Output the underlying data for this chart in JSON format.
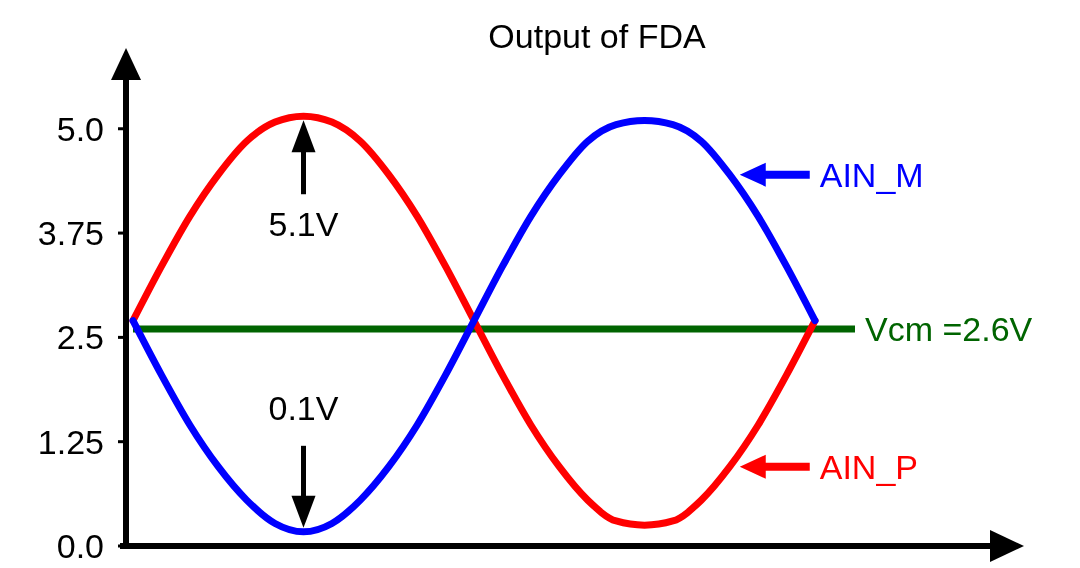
{
  "chart_data": {
    "type": "line",
    "title": "Output of FDA",
    "categories": [
      null,
      null,
      null,
      null,
      null,
      null,
      null,
      null,
      null,
      null,
      null,
      null,
      null,
      null,
      null,
      null,
      null,
      null,
      null,
      null,
      null,
      null,
      null,
      null,
      null
    ],
    "series": [
      {
        "name": "AIN_P",
        "color": "#ff0000",
        "values": [
          2.7,
          3.35,
          3.95,
          4.45,
          4.85,
          5.08,
          5.15,
          5.08,
          4.85,
          4.45,
          3.95,
          3.35,
          2.7,
          2.05,
          1.45,
          0.95,
          0.55,
          0.3,
          0.25,
          0.3,
          0.55,
          0.95,
          1.45,
          2.05,
          2.7
        ]
      },
      {
        "name": "AIN_M",
        "color": "#0000ff",
        "values": [
          2.7,
          2.05,
          1.45,
          0.95,
          0.55,
          0.27,
          0.17,
          0.27,
          0.55,
          0.95,
          1.45,
          2.05,
          2.7,
          3.35,
          3.95,
          4.45,
          4.85,
          5.05,
          5.1,
          5.05,
          4.85,
          4.45,
          3.95,
          3.35,
          2.7
        ]
      }
    ],
    "ylim": [
      0,
      5.8
    ],
    "yticks": [
      {
        "value": 0,
        "label": "0.0"
      },
      {
        "value": 1.25,
        "label": "1.25"
      },
      {
        "value": 2.5,
        "label": "2.5"
      },
      {
        "value": 3.75,
        "label": "3.75"
      },
      {
        "value": 5,
        "label": "5.0"
      }
    ],
    "ref_lines": [
      {
        "axis": "y",
        "value": 2.6,
        "label": "Vcm =2.6V",
        "color": "#006400"
      }
    ],
    "annotations": [
      "5.1V",
      "0.1V"
    ],
    "grid": false,
    "legend": "right",
    "marker": "none",
    "line_style": "solid"
  }
}
